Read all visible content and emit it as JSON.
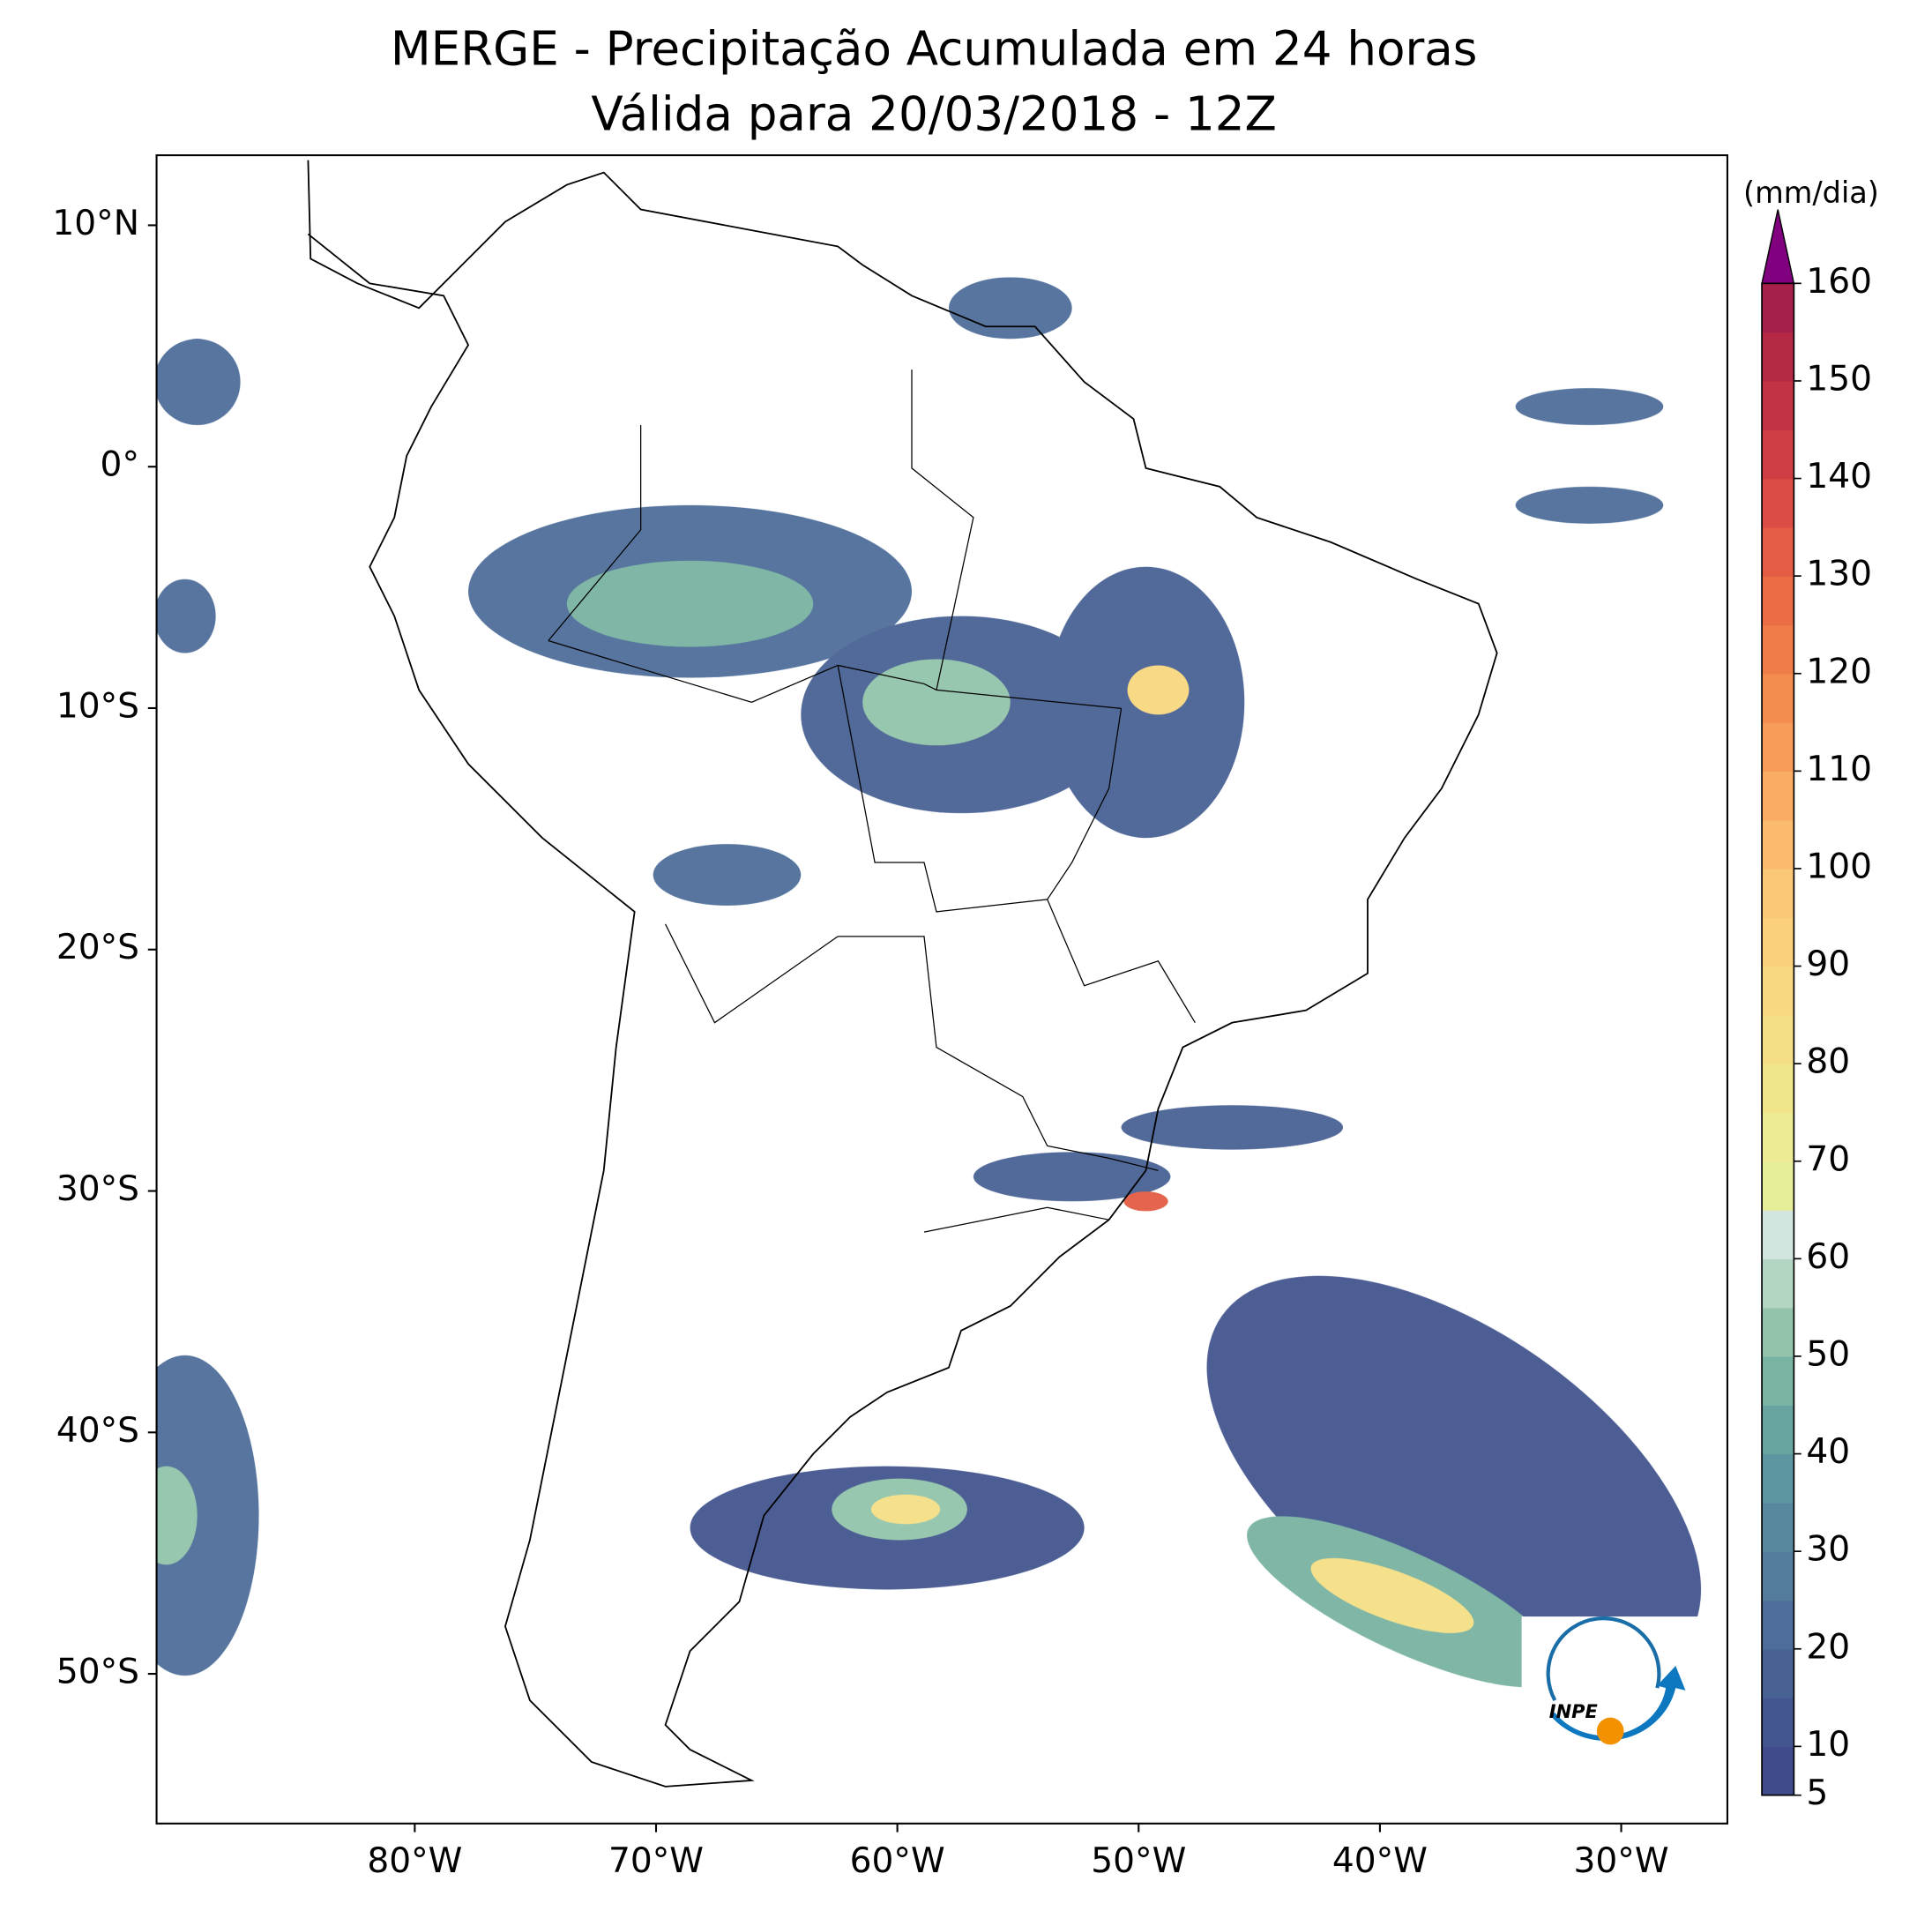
{
  "title": "MERGE - Precipitação Acumulada em 24 horas",
  "subtitle": "Válida para 20/03/2018 - 12Z",
  "map": {
    "xlim": [
      -90.7,
      -25.6
    ],
    "ylim": [
      -56.2,
      12.9
    ],
    "xticks": [
      {
        "value": -80,
        "label": "80°W"
      },
      {
        "value": -70,
        "label": "70°W"
      },
      {
        "value": -60,
        "label": "60°W"
      },
      {
        "value": -50,
        "label": "50°W"
      },
      {
        "value": -40,
        "label": "40°W"
      },
      {
        "value": -30,
        "label": "30°W"
      }
    ],
    "yticks": [
      {
        "value": 10,
        "label": "10°N"
      },
      {
        "value": 0,
        "label": "0°"
      },
      {
        "value": -10,
        "label": "10°S"
      },
      {
        "value": -20,
        "label": "20°S"
      },
      {
        "value": -30,
        "label": "30°S"
      },
      {
        "value": -40,
        "label": "40°S"
      },
      {
        "value": -50,
        "label": "50°S"
      }
    ]
  },
  "colorbar": {
    "label": "(mm/dia)",
    "lim": [
      5,
      160
    ],
    "ticks": [
      5,
      10,
      20,
      30,
      40,
      50,
      60,
      70,
      80,
      90,
      100,
      110,
      120,
      130,
      140,
      150,
      160
    ],
    "colors": [
      "#3f4b8c",
      "#44568f",
      "#496294",
      "#4e6e99",
      "#527b9c",
      "#57889e",
      "#5d96a0",
      "#67a4a0",
      "#79b3a2",
      "#93c4ab",
      "#b2d6c2",
      "#d2e6df",
      "#e6ee9a",
      "#ecea92",
      "#f1e58c",
      "#f5df86",
      "#f8d880",
      "#fad07b",
      "#fbc876",
      "#fbbb6c",
      "#f9ac62",
      "#f79c58",
      "#f48c50",
      "#f07c4a",
      "#ec6c45",
      "#e45c44",
      "#da4c44",
      "#cf3e45",
      "#c33346",
      "#b52947",
      "#a62149"
    ],
    "extend_color": "#800080"
  },
  "logo": {
    "text": "INPE"
  }
}
